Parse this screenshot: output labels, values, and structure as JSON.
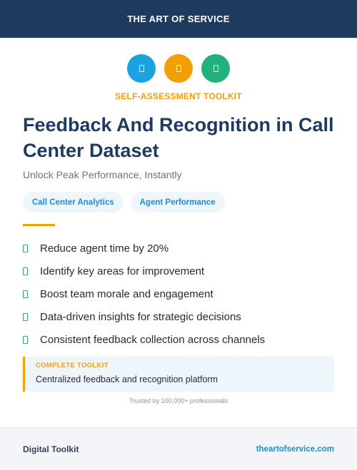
{
  "header": {
    "title": "THE ART OF SERVICE"
  },
  "icons": [
    {
      "name": "document-icon",
      "color": "#1aa3e0"
    },
    {
      "name": "document-icon",
      "color": "#f29f05"
    },
    {
      "name": "document-icon",
      "color": "#22b07d"
    }
  ],
  "eyebrow": "SELF-ASSESSMENT TOOLKIT",
  "title": "Feedback And Recognition in Call Center Dataset",
  "subtitle": "Unlock Peak Performance, Instantly",
  "tags": [
    "Call Center Analytics",
    "Agent Performance"
  ],
  "benefits": [
    "Reduce agent time by 20%",
    "Identify key areas for improvement",
    "Boost team morale and engagement",
    "Data-driven insights for strategic decisions",
    "Consistent feedback collection across channels"
  ],
  "callout": {
    "label": "COMPLETE TOOLKIT",
    "text": "Centralized feedback and recognition platform"
  },
  "trust": "Trusted by 100,000+ professionals",
  "footer": {
    "left": "Digital Toolkit",
    "right": "theartofservice.com"
  },
  "colors": {
    "navy": "#1e3a5f",
    "orange": "#f29f05",
    "blue": "#1aa3e0",
    "green": "#22b07d"
  }
}
